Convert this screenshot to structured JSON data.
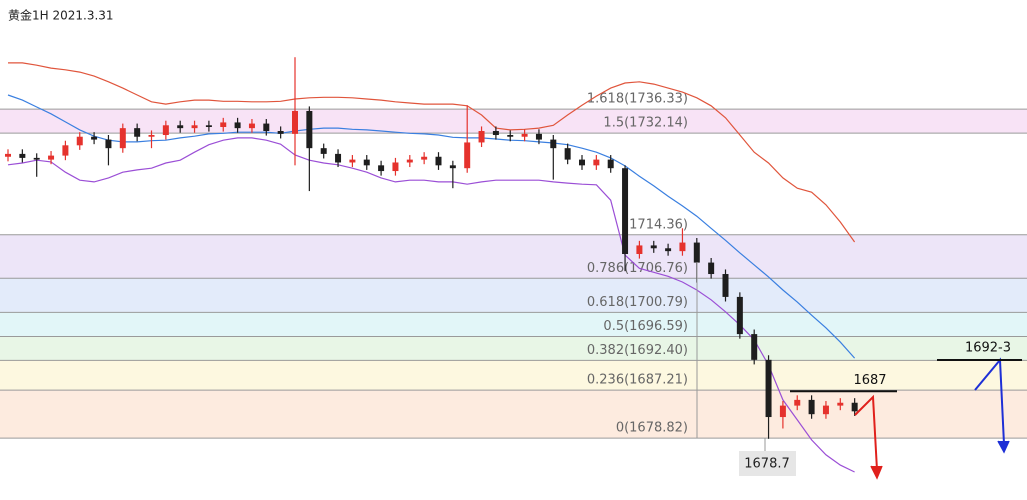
{
  "chart_data": {
    "type": "candlestick",
    "title": "黄金1H 2021.3.31",
    "ylim": [
      1668,
      1755.4
    ],
    "up_color": "#e5322d",
    "down_color": "#1e1e1e",
    "open": [
      1728.0,
      1728.5,
      1727.8,
      1727.5,
      1728.2,
      1730.0,
      1731.5,
      1731.0,
      1729.5,
      1733.0,
      1731.5,
      1731.8,
      1733.5,
      1733.0,
      1733.5,
      1733.2,
      1734.0,
      1733.0,
      1733.8,
      1732.5,
      1732.0,
      1736.0,
      1729.5,
      1728.5,
      1727.0,
      1727.5,
      1726.5,
      1725.5,
      1727.0,
      1727.5,
      1728.0,
      1726.5,
      1726.0,
      1730.5,
      1732.5,
      1731.8,
      1731.5,
      1732.0,
      1731.0,
      1729.5,
      1727.5,
      1726.5,
      1727.5,
      1726.0,
      1711.0,
      1712.5,
      1712.0,
      1711.5,
      1713.0,
      1709.5,
      1707.5,
      1703.5,
      1697.0,
      1692.5,
      1682.5,
      1684.5,
      1685.5,
      1683.0,
      1684.5,
      1685.0
    ],
    "high": [
      1729.3,
      1729.3,
      1728.6,
      1729.0,
      1730.8,
      1732.3,
      1732.3,
      1731.8,
      1733.8,
      1733.8,
      1732.6,
      1734.3,
      1734.3,
      1734.3,
      1734.3,
      1734.8,
      1734.8,
      1734.6,
      1734.6,
      1733.3,
      1745.4,
      1736.8,
      1730.3,
      1729.3,
      1728.3,
      1728.3,
      1727.3,
      1727.8,
      1728.3,
      1728.8,
      1728.8,
      1727.3,
      1737.0,
      1733.3,
      1733.3,
      1732.6,
      1732.8,
      1732.8,
      1731.8,
      1730.3,
      1728.3,
      1728.3,
      1728.3,
      1726.5,
      1713.3,
      1713.3,
      1712.8,
      1715.5,
      1713.8,
      1710.3,
      1708.3,
      1704.3,
      1697.8,
      1693.3,
      1685.3,
      1686.3,
      1686.3,
      1685.3,
      1685.8,
      1685.8
    ],
    "low": [
      1727.2,
      1727.0,
      1724.5,
      1726.7,
      1727.4,
      1729.2,
      1730.2,
      1726.5,
      1728.7,
      1730.7,
      1729.5,
      1731.0,
      1732.2,
      1732.2,
      1732.4,
      1732.4,
      1732.2,
      1732.2,
      1731.7,
      1731.2,
      1726.5,
      1722.0,
      1727.7,
      1726.2,
      1726.2,
      1725.7,
      1724.7,
      1724.7,
      1726.2,
      1726.7,
      1725.7,
      1722.5,
      1725.2,
      1729.7,
      1731.0,
      1730.7,
      1730.7,
      1730.2,
      1724.0,
      1726.7,
      1725.7,
      1725.7,
      1725.2,
      1708.0,
      1710.2,
      1711.2,
      1710.7,
      1710.7,
      1706.0,
      1706.7,
      1702.7,
      1696.2,
      1691.7,
      1678.7,
      1680.5,
      1683.7,
      1682.2,
      1682.2,
      1683.7,
      1682.7
    ],
    "close": [
      1728.5,
      1727.8,
      1727.5,
      1728.2,
      1730.0,
      1731.5,
      1731.0,
      1729.5,
      1733.0,
      1731.5,
      1731.8,
      1733.5,
      1733.0,
      1733.5,
      1733.2,
      1734.0,
      1733.0,
      1733.8,
      1732.5,
      1732.0,
      1736.0,
      1729.5,
      1728.5,
      1727.0,
      1727.5,
      1726.5,
      1725.5,
      1727.0,
      1727.5,
      1728.0,
      1726.5,
      1726.0,
      1730.5,
      1732.5,
      1731.8,
      1731.5,
      1732.0,
      1731.0,
      1729.5,
      1727.5,
      1726.5,
      1727.5,
      1726.0,
      1711.0,
      1712.5,
      1712.0,
      1711.5,
      1713.0,
      1709.5,
      1707.5,
      1703.5,
      1697.0,
      1692.5,
      1682.5,
      1684.5,
      1685.5,
      1683.0,
      1684.5,
      1685.0,
      1683.5
    ],
    "bands": [
      {
        "color": "#e0553c",
        "values": [
          1744.4,
          1744.4,
          1744.0,
          1743.5,
          1743.2,
          1742.8,
          1742.1,
          1741.1,
          1740.0,
          1738.8,
          1737.6,
          1737.2,
          1737.6,
          1737.9,
          1737.9,
          1737.7,
          1737.7,
          1737.6,
          1737.6,
          1737.7,
          1738.1,
          1738.3,
          1738.4,
          1738.4,
          1738.3,
          1738.1,
          1737.9,
          1737.6,
          1737.4,
          1737.2,
          1737.2,
          1737.2,
          1736.9,
          1735.3,
          1733.0,
          1732.7,
          1732.8,
          1733.0,
          1733.5,
          1735.3,
          1737.0,
          1738.6,
          1740.0,
          1740.9,
          1741.1,
          1740.7,
          1740.0,
          1739.3,
          1738.3,
          1736.9,
          1734.8,
          1731.8,
          1728.8,
          1726.9,
          1724.3,
          1722.5,
          1721.8,
          1719.6,
          1716.6,
          1713.1
        ]
      },
      {
        "color": "#3a7fe0",
        "values": [
          1738.8,
          1737.9,
          1736.7,
          1735.5,
          1734.1,
          1732.7,
          1731.6,
          1730.9,
          1730.6,
          1730.6,
          1730.8,
          1730.9,
          1731.3,
          1731.6,
          1732.0,
          1732.1,
          1732.3,
          1732.3,
          1732.3,
          1732.1,
          1732.5,
          1732.8,
          1733.0,
          1733.0,
          1732.8,
          1732.7,
          1732.5,
          1732.3,
          1732.1,
          1732.0,
          1731.8,
          1731.4,
          1731.3,
          1731.3,
          1731.1,
          1730.9,
          1730.8,
          1730.6,
          1730.4,
          1730.1,
          1729.5,
          1728.8,
          1727.8,
          1726.4,
          1724.6,
          1722.9,
          1721.1,
          1719.4,
          1717.6,
          1715.5,
          1713.4,
          1711.2,
          1709.1,
          1707.0,
          1704.7,
          1702.6,
          1700.3,
          1698.1,
          1695.6,
          1692.8
        ]
      },
      {
        "color": "#9b4fd6",
        "values": [
          1726.6,
          1726.9,
          1727.4,
          1727.1,
          1725.3,
          1723.9,
          1723.6,
          1724.3,
          1725.3,
          1725.7,
          1726.0,
          1726.9,
          1727.4,
          1728.8,
          1730.1,
          1730.9,
          1731.3,
          1731.3,
          1730.9,
          1730.2,
          1728.3,
          1727.4,
          1726.9,
          1726.6,
          1726.0,
          1725.3,
          1724.3,
          1723.6,
          1723.9,
          1723.9,
          1723.6,
          1723.6,
          1723.2,
          1723.6,
          1723.9,
          1723.9,
          1723.9,
          1723.9,
          1723.6,
          1723.4,
          1723.2,
          1723.1,
          1720.4,
          1710.8,
          1708.5,
          1707.8,
          1707.1,
          1706.1,
          1704.7,
          1703.0,
          1700.9,
          1698.6,
          1696.0,
          1691.6,
          1685.5,
          1682.0,
          1678.5,
          1675.9,
          1674.1,
          1672.9
        ]
      }
    ],
    "fib_levels": [
      {
        "label": "1.618(1736.33)",
        "value": 1736.33,
        "color": "#f8e3f6"
      },
      {
        "label": "1.5(1732.14)",
        "value": 1732.14,
        "color": "#ffffff"
      },
      {
        "label": "(1714.36)",
        "value": 1714.36,
        "color": "#ede5f8"
      },
      {
        "label": "0.786(1706.76)",
        "value": 1706.76,
        "color": "#e3ebfa"
      },
      {
        "label": "0.618(1700.79)",
        "value": 1700.79,
        "color": "#e2f6f8"
      },
      {
        "label": "0.5(1696.59)",
        "value": 1696.59,
        "color": "#e8f6e6"
      },
      {
        "label": "0.382(1692.40)",
        "value": 1692.4,
        "color": "#fdf8e0"
      },
      {
        "label": "0.236(1687.21)",
        "value": 1687.21,
        "color": "#fdebdf"
      },
      {
        "label": "0(1678.82)",
        "value": 1678.82
      }
    ],
    "resistance": 1687,
    "target": "1692-3",
    "low_marker": 1678.7
  }
}
